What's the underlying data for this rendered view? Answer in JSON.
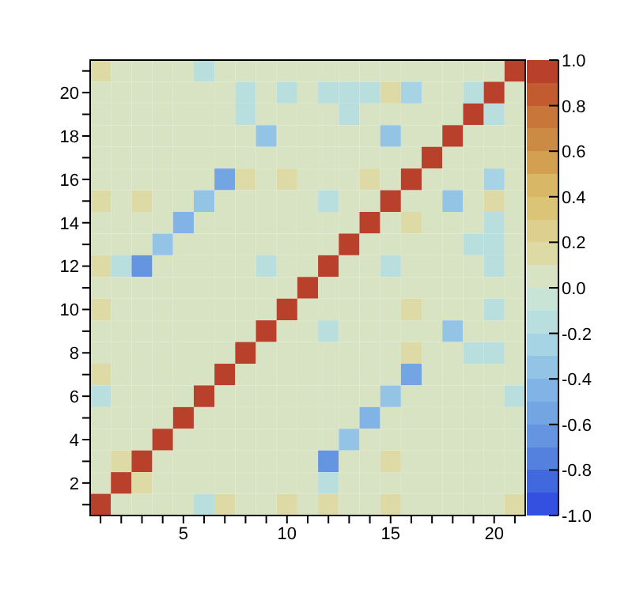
{
  "chart_data": {
    "type": "heatmap",
    "categories": [
      null,
      null,
      null,
      null,
      "5",
      null,
      null,
      null,
      null,
      "10",
      null,
      null,
      null,
      null,
      "15",
      null,
      null,
      null,
      null,
      "20",
      null
    ],
    "y_categories": [
      null,
      "20",
      null,
      "18",
      null,
      "16",
      null,
      "14",
      null,
      "12",
      null,
      "10",
      null,
      "8",
      null,
      "6",
      null,
      "4",
      null,
      "2",
      null
    ],
    "cells": [
      [
        0.15,
        0,
        0,
        0,
        0,
        -0.15,
        0,
        0,
        0,
        0,
        0,
        0,
        0,
        0,
        0,
        0,
        0,
        0,
        0,
        0,
        1
      ],
      [
        0,
        0,
        0,
        0,
        0,
        0,
        0,
        -0.15,
        0,
        -0.15,
        0,
        -0.15,
        -0.15,
        -0.15,
        0.15,
        -0.25,
        0,
        0,
        -0.15,
        1,
        0
      ],
      [
        0,
        0,
        0,
        0,
        0,
        0,
        0,
        -0.15,
        0,
        0,
        0,
        0,
        -0.15,
        0,
        0,
        0,
        0,
        0,
        1,
        -0.15,
        0
      ],
      [
        0,
        0,
        0,
        0,
        0,
        0,
        0,
        0,
        -0.35,
        0,
        0,
        0,
        0,
        0,
        -0.35,
        0,
        0,
        1,
        0,
        0,
        0
      ],
      [
        0,
        0,
        0,
        0,
        0,
        0,
        0,
        0,
        0,
        0,
        0,
        0,
        0,
        0,
        0,
        0,
        1,
        0,
        0,
        0,
        0
      ],
      [
        0,
        0,
        0,
        0,
        0,
        0,
        -0.55,
        0.15,
        0,
        0.15,
        0,
        0,
        0,
        0.15,
        0,
        1,
        0,
        0,
        0,
        -0.25,
        0
      ],
      [
        0.15,
        0,
        0.15,
        0,
        0,
        -0.35,
        0,
        0,
        0,
        0,
        0,
        -0.15,
        0,
        0,
        1,
        0,
        0,
        -0.35,
        0,
        0.15,
        0
      ],
      [
        0,
        0,
        0,
        0,
        -0.45,
        0,
        0,
        0,
        0,
        0,
        0,
        0,
        0,
        1,
        0,
        0.15,
        0,
        0,
        0,
        -0.15,
        0
      ],
      [
        0,
        0,
        0,
        -0.35,
        0,
        0,
        0,
        0,
        0,
        0,
        0,
        0,
        1,
        0,
        0,
        0,
        0,
        0,
        -0.15,
        -0.15,
        0
      ],
      [
        0.15,
        -0.15,
        -0.65,
        0,
        0,
        0,
        0,
        0,
        -0.15,
        0,
        0,
        1,
        0,
        0,
        -0.15,
        0,
        0,
        0,
        0,
        -0.15,
        0
      ],
      [
        0,
        0,
        0,
        0,
        0,
        0,
        0,
        0,
        0,
        0,
        1,
        0,
        0,
        0,
        0,
        0,
        0,
        0,
        0,
        0,
        0
      ],
      [
        0.15,
        0,
        0,
        0,
        0,
        0,
        0,
        0,
        0,
        1,
        0,
        0,
        0,
        0,
        0,
        0.15,
        0,
        0,
        0,
        -0.15,
        0
      ],
      [
        0,
        0,
        0,
        0,
        0,
        0,
        0,
        0,
        1,
        0,
        0,
        -0.15,
        0,
        0,
        0,
        0,
        0,
        -0.35,
        0,
        0,
        0
      ],
      [
        0,
        0,
        0,
        0,
        0,
        0,
        0,
        1,
        0,
        0,
        0,
        0,
        0,
        0,
        0,
        0.15,
        0,
        0,
        -0.15,
        -0.15,
        0
      ],
      [
        0.15,
        0,
        0,
        0,
        0,
        0,
        1,
        0,
        0,
        0,
        0,
        0,
        0,
        0,
        0,
        -0.55,
        0,
        0,
        0,
        0,
        0
      ],
      [
        -0.15,
        0,
        0,
        0,
        0,
        1,
        0,
        0,
        0,
        0,
        0,
        0,
        0,
        0,
        -0.35,
        0,
        0,
        0,
        0,
        0,
        -0.15
      ],
      [
        0,
        0,
        0,
        0,
        1,
        0,
        0,
        0,
        0,
        0,
        0,
        0,
        0,
        -0.45,
        0,
        0,
        0,
        0,
        0,
        0,
        0
      ],
      [
        0,
        0,
        0,
        1,
        0,
        0,
        0,
        0,
        0,
        0,
        0,
        0,
        -0.35,
        0,
        0,
        0,
        0,
        0,
        0,
        0,
        0
      ],
      [
        0,
        0.15,
        1,
        0,
        0,
        0,
        0,
        0,
        0,
        0,
        0,
        -0.65,
        0,
        0,
        0.15,
        0,
        0,
        0,
        0,
        0,
        0
      ],
      [
        0,
        1,
        0.15,
        0,
        0,
        0,
        0,
        0,
        0,
        0,
        0,
        -0.15,
        0,
        0,
        0,
        0,
        0,
        0,
        0,
        0,
        0
      ],
      [
        1,
        0,
        0,
        0,
        0,
        -0.15,
        0.15,
        0,
        0,
        0.15,
        0,
        0.15,
        0,
        0,
        0.15,
        0,
        0,
        0,
        0,
        0,
        0.15
      ]
    ],
    "clim": [
      -1,
      1
    ],
    "cticks": [
      {
        "value": 1,
        "label": "1.0"
      },
      0.8,
      0.6,
      0.4,
      0.2,
      {
        "value": 0,
        "label": "0.0"
      },
      -0.2,
      -0.4,
      -0.6,
      -0.8,
      {
        "value": -1,
        "label": "-1.0"
      }
    ]
  }
}
